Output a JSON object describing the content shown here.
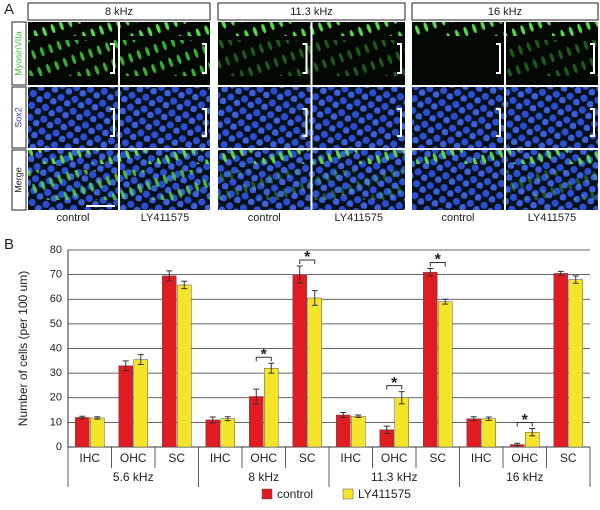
{
  "panel_a": {
    "label": "A",
    "columns": [
      "8 kHz",
      "11.3 kHz",
      "16 kHz"
    ],
    "rows": [
      "MyosinVIIa",
      "Sox2",
      "Merge"
    ],
    "conditions": [
      "control",
      "LY411575"
    ]
  },
  "chart_data": {
    "type": "bar",
    "panel_label": "B",
    "ylabel": "Number of cells (per 100 um)",
    "categories": [
      "IHC",
      "OHC",
      "SC",
      "IHC",
      "OHC",
      "SC",
      "IHC",
      "OHC",
      "SC",
      "IHC",
      "OHC",
      "SC"
    ],
    "groups": [
      "5.6 kHz",
      "8 kHz",
      "11.3 kHz",
      "16 kHz"
    ],
    "series": [
      {
        "name": "control",
        "color": "#e01b22",
        "values": [
          12,
          33,
          69.5,
          11,
          20.5,
          70,
          13,
          7,
          71,
          11.5,
          1,
          70.5
        ],
        "errors": [
          0.5,
          2,
          2,
          1.2,
          3,
          3.5,
          1,
          1.5,
          1.5,
          0.8,
          0.5,
          0.8
        ]
      },
      {
        "name": "LY411575",
        "color": "#f5e52a",
        "values": [
          11.8,
          35.5,
          65.8,
          11.5,
          32,
          60.5,
          12.5,
          20,
          59,
          11.5,
          6,
          68
        ],
        "errors": [
          0.5,
          2,
          1.5,
          0.8,
          2,
          3,
          0.5,
          2.5,
          1,
          0.7,
          1.5,
          1.5
        ]
      }
    ],
    "significance": [
      null,
      null,
      null,
      null,
      "*",
      "*",
      null,
      "*",
      "*",
      null,
      "*",
      null
    ],
    "ylim": [
      0,
      80
    ],
    "yticks": [
      0,
      10,
      20,
      30,
      40,
      50,
      60,
      70,
      80
    ],
    "grid": true
  }
}
